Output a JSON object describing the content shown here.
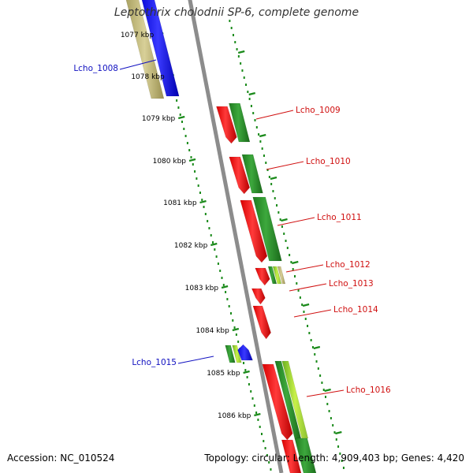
{
  "title": "Leptothrix cholodnii SP-6, complete genome",
  "accession_text": "Accession: NC_010524",
  "summary_text": "Topology: circular; Length: 4,909,403 bp; Genes: 4,420",
  "tick_labels": [
    "1077 kbp",
    "1078 kbp",
    "1079 kbp",
    "1080 kbp",
    "1081 kbp",
    "1082 kbp",
    "1083 kbp",
    "1084 kbp",
    "1085 kbp",
    "1086 kbp"
  ],
  "gene_labels": [
    {
      "text": "Lcho_1008",
      "color": "#1010c0"
    },
    {
      "text": "Lcho_1009",
      "color": "#d01010"
    },
    {
      "text": "Lcho_1010",
      "color": "#d01010"
    },
    {
      "text": "Lcho_1011",
      "color": "#d01010"
    },
    {
      "text": "Lcho_1012",
      "color": "#d01010"
    },
    {
      "text": "Lcho_1013",
      "color": "#d01010"
    },
    {
      "text": "Lcho_1014",
      "color": "#d01010"
    },
    {
      "text": "Lcho_1015",
      "color": "#1010c0"
    },
    {
      "text": "Lcho_1016",
      "color": "#d01010"
    }
  ],
  "colors": {
    "backbone": "#8c8c8c",
    "ticks": "#1a8a1a",
    "forward_cds": "#1010ee",
    "reverse_cds": "#ee1010",
    "gc_track": "#2a8a2a",
    "other_track": "#b8b070",
    "label_line_blue": "#1010c0",
    "label_line_red": "#d01010"
  }
}
